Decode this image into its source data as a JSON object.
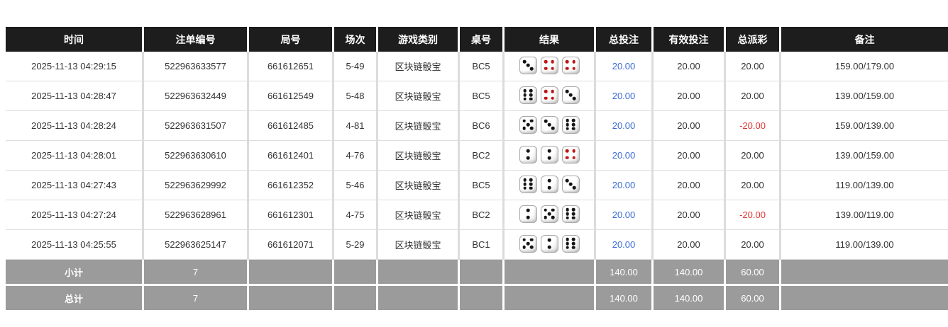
{
  "table": {
    "headers": [
      {
        "key": "time",
        "label": "时间"
      },
      {
        "key": "order-id",
        "label": "注单编号"
      },
      {
        "key": "round-id",
        "label": "局号"
      },
      {
        "key": "session",
        "label": "场次"
      },
      {
        "key": "game-type",
        "label": "游戏类别"
      },
      {
        "key": "table-id",
        "label": "桌号"
      },
      {
        "key": "result",
        "label": "结果"
      },
      {
        "key": "total-bet",
        "label": "总投注"
      },
      {
        "key": "valid-bet",
        "label": "有效投注"
      },
      {
        "key": "payout",
        "label": "总派彩"
      },
      {
        "key": "remark",
        "label": "备注"
      }
    ],
    "rows": [
      {
        "time": "2025-11-13 04:29:15",
        "order_id": "522963633577",
        "round_id": "661612651",
        "session": "5-49",
        "game_type": "区块链骰宝",
        "table_id": "BC5",
        "dice": [
          {
            "value": 3,
            "color": "black"
          },
          {
            "value": 4,
            "color": "red"
          },
          {
            "value": 4,
            "color": "red"
          }
        ],
        "total_bet": "20.00",
        "valid_bet": "20.00",
        "payout": "20.00",
        "remark": "159.00/179.00"
      },
      {
        "time": "2025-11-13 04:28:47",
        "order_id": "522963632449",
        "round_id": "661612549",
        "session": "5-48",
        "game_type": "区块链骰宝",
        "table_id": "BC5",
        "dice": [
          {
            "value": 6,
            "color": "black"
          },
          {
            "value": 4,
            "color": "red"
          },
          {
            "value": 3,
            "color": "black"
          }
        ],
        "total_bet": "20.00",
        "valid_bet": "20.00",
        "payout": "20.00",
        "remark": "139.00/159.00"
      },
      {
        "time": "2025-11-13 04:28:24",
        "order_id": "522963631507",
        "round_id": "661612485",
        "session": "4-81",
        "game_type": "区块链骰宝",
        "table_id": "BC6",
        "dice": [
          {
            "value": 5,
            "color": "black"
          },
          {
            "value": 3,
            "color": "black"
          },
          {
            "value": 6,
            "color": "black"
          }
        ],
        "total_bet": "20.00",
        "valid_bet": "20.00",
        "payout": "-20.00",
        "remark": "159.00/139.00"
      },
      {
        "time": "2025-11-13 04:28:01",
        "order_id": "522963630610",
        "round_id": "661612401",
        "session": "4-76",
        "game_type": "区块链骰宝",
        "table_id": "BC2",
        "dice": [
          {
            "value": 2,
            "color": "black"
          },
          {
            "value": 2,
            "color": "black"
          },
          {
            "value": 4,
            "color": "red"
          }
        ],
        "total_bet": "20.00",
        "valid_bet": "20.00",
        "payout": "20.00",
        "remark": "139.00/159.00"
      },
      {
        "time": "2025-11-13 04:27:43",
        "order_id": "522963629992",
        "round_id": "661612352",
        "session": "5-46",
        "game_type": "区块链骰宝",
        "table_id": "BC5",
        "dice": [
          {
            "value": 6,
            "color": "black"
          },
          {
            "value": 2,
            "color": "black"
          },
          {
            "value": 3,
            "color": "black"
          }
        ],
        "total_bet": "20.00",
        "valid_bet": "20.00",
        "payout": "20.00",
        "remark": "119.00/139.00"
      },
      {
        "time": "2025-11-13 04:27:24",
        "order_id": "522963628961",
        "round_id": "661612301",
        "session": "4-75",
        "game_type": "区块链骰宝",
        "table_id": "BC2",
        "dice": [
          {
            "value": 2,
            "color": "black"
          },
          {
            "value": 5,
            "color": "black"
          },
          {
            "value": 6,
            "color": "black"
          }
        ],
        "total_bet": "20.00",
        "valid_bet": "20.00",
        "payout": "-20.00",
        "remark": "139.00/119.00"
      },
      {
        "time": "2025-11-13 04:25:55",
        "order_id": "522963625147",
        "round_id": "661612071",
        "session": "5-29",
        "game_type": "区块链骰宝",
        "table_id": "BC1",
        "dice": [
          {
            "value": 5,
            "color": "black"
          },
          {
            "value": 2,
            "color": "black"
          },
          {
            "value": 6,
            "color": "black"
          }
        ],
        "total_bet": "20.00",
        "valid_bet": "20.00",
        "payout": "20.00",
        "remark": "119.00/139.00"
      }
    ],
    "subtotal": {
      "label": "小计",
      "count": "7",
      "total_bet": "140.00",
      "valid_bet": "140.00",
      "payout": "60.00"
    },
    "total": {
      "label": "总计",
      "count": "7",
      "total_bet": "140.00",
      "valid_bet": "140.00",
      "payout": "60.00"
    },
    "colors": {
      "header_bg": "#1d1d1d",
      "summary_bg": "#9b9b9b",
      "bet_link_blue": "#3b6bd6",
      "negative_red": "#e23333",
      "red_pip": "#c01414"
    }
  }
}
